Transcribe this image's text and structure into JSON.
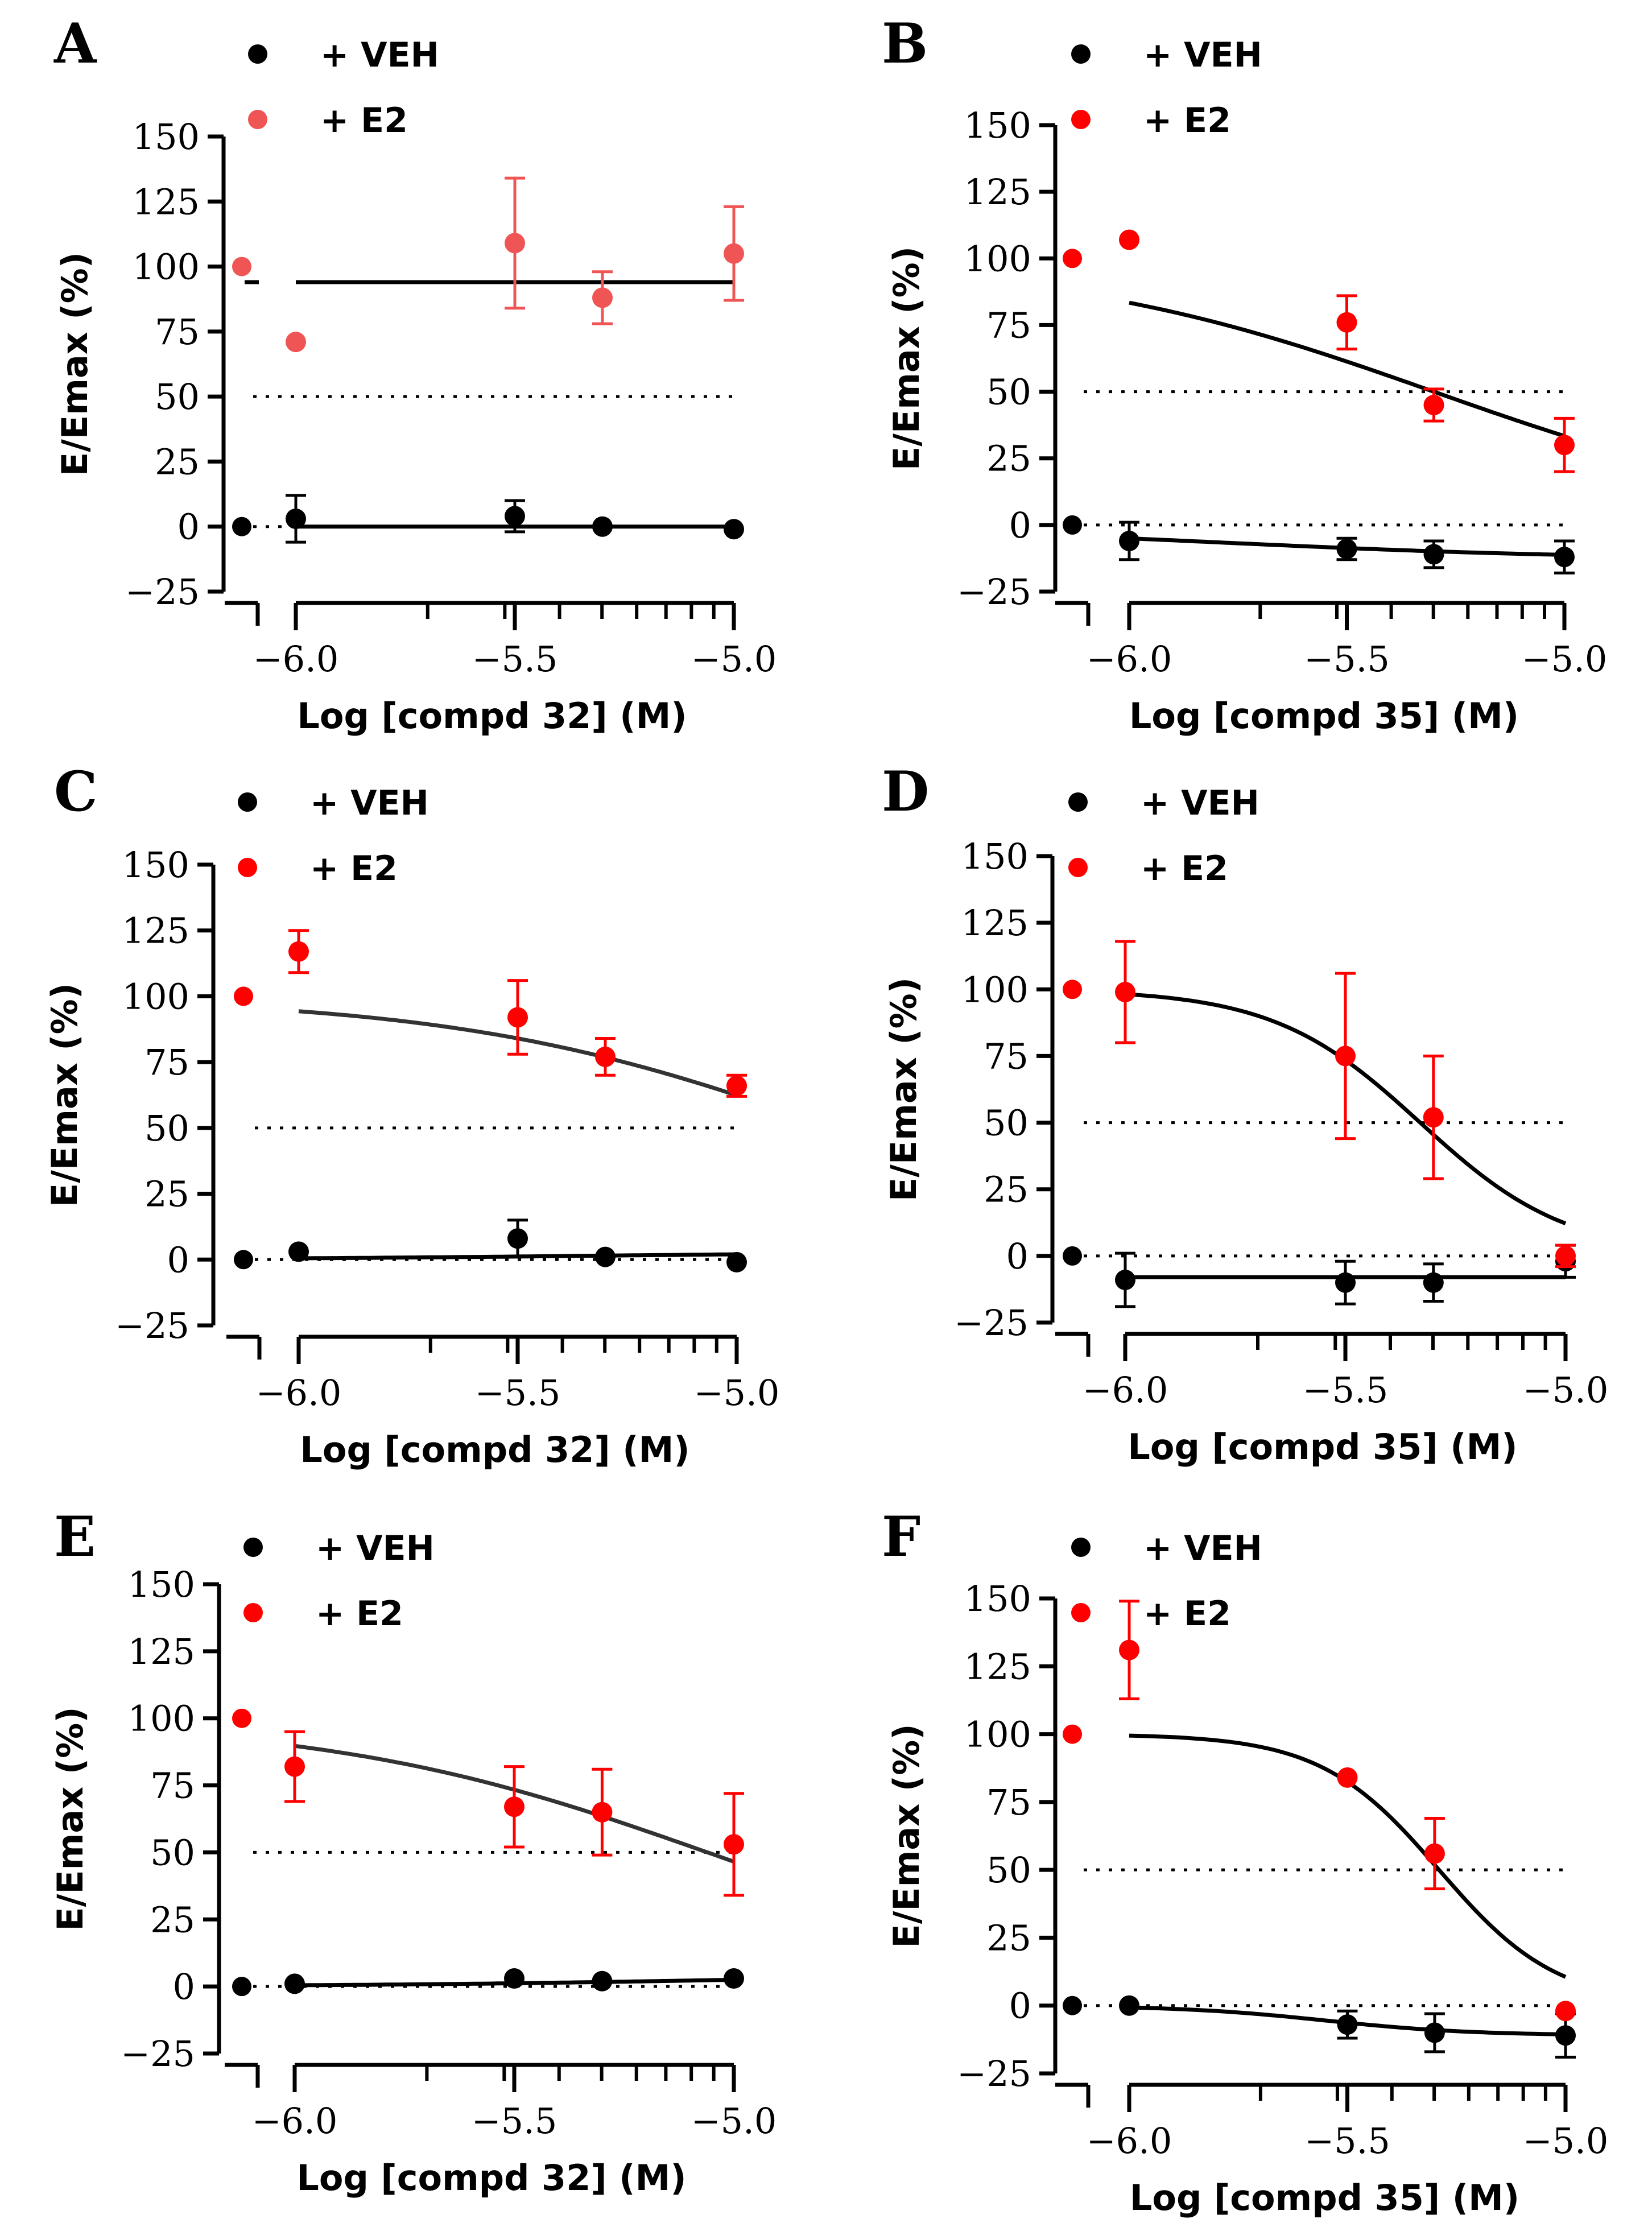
{
  "figure": {
    "colors": {
      "veh": "#000000",
      "e2": "#ff0000",
      "e2_light": "#f05555",
      "fit": "#000000",
      "fit_dark": "#333333"
    }
  },
  "chart_data": [
    {
      "panel": "A",
      "type": "scatter",
      "xlabel": "Log [compd 32] (M)",
      "ylabel": "E/Emax (%)",
      "xlim": [
        -6.0,
        -5.0
      ],
      "ylim": [
        -25,
        150
      ],
      "xticks": [
        "-6.0",
        "-5.5",
        "-5.0"
      ],
      "yticks": [
        "-25",
        "0",
        "25",
        "50",
        "75",
        "100",
        "125",
        "150"
      ],
      "reference_line": 50,
      "legend": [
        "+ VEH",
        "+ E2"
      ],
      "control": {
        "veh": 0,
        "e2": 100
      },
      "series": [
        {
          "name": "+ VEH",
          "x": [
            -6.0,
            -5.5,
            -5.3,
            -5.0
          ],
          "y": [
            3,
            4,
            0,
            -1
          ],
          "err": [
            9,
            6,
            0,
            0
          ],
          "fit": "flat",
          "fit_value": 0
        },
        {
          "name": "+ E2",
          "x": [
            -6.0,
            -5.5,
            -5.3,
            -5.0
          ],
          "y": [
            71,
            109,
            88,
            105
          ],
          "err": [
            0,
            25,
            10,
            18
          ],
          "fit": "flat",
          "fit_value": 94
        }
      ]
    },
    {
      "panel": "B",
      "type": "scatter",
      "xlabel": "Log [compd 35] (M)",
      "ylabel": "E/Emax (%)",
      "xlim": [
        -6.0,
        -5.0
      ],
      "ylim": [
        -25,
        150
      ],
      "xticks": [
        "-6.0",
        "-5.5",
        "-5.0"
      ],
      "yticks": [
        "-25",
        "0",
        "25",
        "50",
        "75",
        "100",
        "125",
        "150"
      ],
      "reference_line": 50,
      "legend": [
        "+ VEH",
        "+ E2"
      ],
      "control": {
        "veh": 0,
        "e2": 100
      },
      "series": [
        {
          "name": "+ VEH",
          "x": [
            -6.0,
            -5.5,
            -5.3,
            -5.0
          ],
          "y": [
            -6,
            -9,
            -11,
            -12
          ],
          "err": [
            7,
            4,
            5,
            6
          ],
          "fit": "sigmoid",
          "top": 0,
          "bottom": -13,
          "logec50": -5.8,
          "hill": 1
        },
        {
          "name": "+ E2",
          "x": [
            -6.0,
            -5.5,
            -5.3,
            -5.0
          ],
          "y": [
            107,
            76,
            45,
            30
          ],
          "err": [
            0,
            10,
            6,
            10
          ],
          "fit": "sigmoid",
          "top": 100,
          "bottom": 0,
          "logec50": -5.3,
          "hill": 1
        }
      ]
    },
    {
      "panel": "C",
      "type": "scatter",
      "xlabel": "Log [compd 32] (M)",
      "ylabel": "E/Emax (%)",
      "xlim": [
        -6.0,
        -5.0
      ],
      "ylim": [
        -25,
        150
      ],
      "xticks": [
        "-6.0",
        "-5.5",
        "-5.0"
      ],
      "yticks": [
        "-25",
        "0",
        "25",
        "50",
        "75",
        "100",
        "125",
        "150"
      ],
      "reference_line": 50,
      "legend": [
        "+ VEH",
        "+ E2"
      ],
      "control": {
        "veh": 0,
        "e2": 100
      },
      "series": [
        {
          "name": "+ VEH",
          "x": [
            -6.0,
            -5.5,
            -5.3,
            -5.0
          ],
          "y": [
            3,
            8,
            1,
            -1
          ],
          "err": [
            0,
            7,
            0,
            0
          ],
          "fit": "sigmoid",
          "top": 0,
          "bottom": 3,
          "logec50": -5.3,
          "hill": 1
        },
        {
          "name": "+ E2",
          "x": [
            -6.0,
            -5.5,
            -5.3,
            -5.0
          ],
          "y": [
            117,
            92,
            77,
            66
          ],
          "err": [
            8,
            14,
            7,
            4
          ],
          "fit": "sigmoid",
          "top": 100,
          "bottom": 0,
          "logec50": -4.78,
          "hill": 1
        }
      ]
    },
    {
      "panel": "D",
      "type": "scatter",
      "xlabel": "Log [compd 35] (M)",
      "ylabel": "E/Emax (%)",
      "xlim": [
        -6.0,
        -5.0
      ],
      "ylim": [
        -25,
        150
      ],
      "xticks": [
        "-6.0",
        "-5.5",
        "-5.0"
      ],
      "yticks": [
        "-25",
        "0",
        "25",
        "50",
        "75",
        "100",
        "125",
        "150"
      ],
      "reference_line": 50,
      "legend": [
        "+ VEH",
        "+ E2"
      ],
      "control": {
        "veh": 0,
        "e2": 100
      },
      "series": [
        {
          "name": "+ VEH",
          "x": [
            -6.0,
            -5.5,
            -5.3,
            -5.0
          ],
          "y": [
            -9,
            -10,
            -10,
            -2
          ],
          "err": [
            10,
            8,
            7,
            6
          ],
          "fit": "flat",
          "fit_value": -8
        },
        {
          "name": "+ E2",
          "x": [
            -6.0,
            -5.5,
            -5.3,
            -5.0
          ],
          "y": [
            99,
            75,
            52,
            0
          ],
          "err": [
            19,
            31,
            23,
            4
          ],
          "fit": "sigmoid",
          "top": 100,
          "bottom": 0,
          "logec50": -5.33,
          "hill": 2.6
        }
      ]
    },
    {
      "panel": "E",
      "type": "scatter",
      "xlabel": "Log [compd 32] (M)",
      "ylabel": "E/Emax (%)",
      "xlim": [
        -6.0,
        -5.0
      ],
      "ylim": [
        -25,
        150
      ],
      "xticks": [
        "-6.0",
        "-5.5",
        "-5.0"
      ],
      "yticks": [
        "-25",
        "0",
        "25",
        "50",
        "75",
        "100",
        "125",
        "150"
      ],
      "reference_line": 50,
      "legend": [
        "+ VEH",
        "+ E2"
      ],
      "control": {
        "veh": 0,
        "e2": 100
      },
      "series": [
        {
          "name": "+ VEH",
          "x": [
            -6.0,
            -5.5,
            -5.3,
            -5.0
          ],
          "y": [
            1,
            3,
            2,
            3
          ],
          "err": [
            0,
            0,
            0,
            0
          ],
          "fit": "sigmoid",
          "top": 0,
          "bottom": 5,
          "logec50": -5.0,
          "hill": 1
        },
        {
          "name": "+ E2",
          "x": [
            -6.0,
            -5.5,
            -5.3,
            -5.0
          ],
          "y": [
            82,
            67,
            65,
            53
          ],
          "err": [
            13,
            15,
            16,
            19
          ],
          "fit": "sigmoid",
          "top": 100,
          "bottom": 0,
          "logec50": -5.06,
          "hill": 1
        }
      ]
    },
    {
      "panel": "F",
      "type": "scatter",
      "xlabel": "Log [compd 35] (M)",
      "ylabel": "E/Emax (%)",
      "xlim": [
        -6.0,
        -5.0
      ],
      "ylim": [
        -25,
        150
      ],
      "xticks": [
        "-6.0",
        "-5.5",
        "-5.0"
      ],
      "yticks": [
        "-25",
        "0",
        "25",
        "50",
        "75",
        "100",
        "125",
        "150"
      ],
      "reference_line": 50,
      "legend": [
        "+ VEH",
        "+ E2"
      ],
      "control": {
        "veh": 0,
        "e2": 100
      },
      "series": [
        {
          "name": "+ VEH",
          "x": [
            -6.0,
            -5.5,
            -5.3,
            -5.0
          ],
          "y": [
            0,
            -7,
            -10,
            -11
          ],
          "err": [
            0,
            5,
            7,
            8
          ],
          "fit": "sigmoid",
          "top": 0,
          "bottom": -11,
          "logec50": -5.55,
          "hill": 2.6
        },
        {
          "name": "+ E2",
          "x": [
            -6.0,
            -5.5,
            -5.3,
            -5.0
          ],
          "y": [
            131,
            84,
            56,
            -2
          ],
          "err": [
            18,
            0,
            13,
            0
          ],
          "fit": "sigmoid",
          "top": 100,
          "bottom": 0,
          "logec50": -5.29,
          "hill": 3.2
        }
      ]
    }
  ]
}
